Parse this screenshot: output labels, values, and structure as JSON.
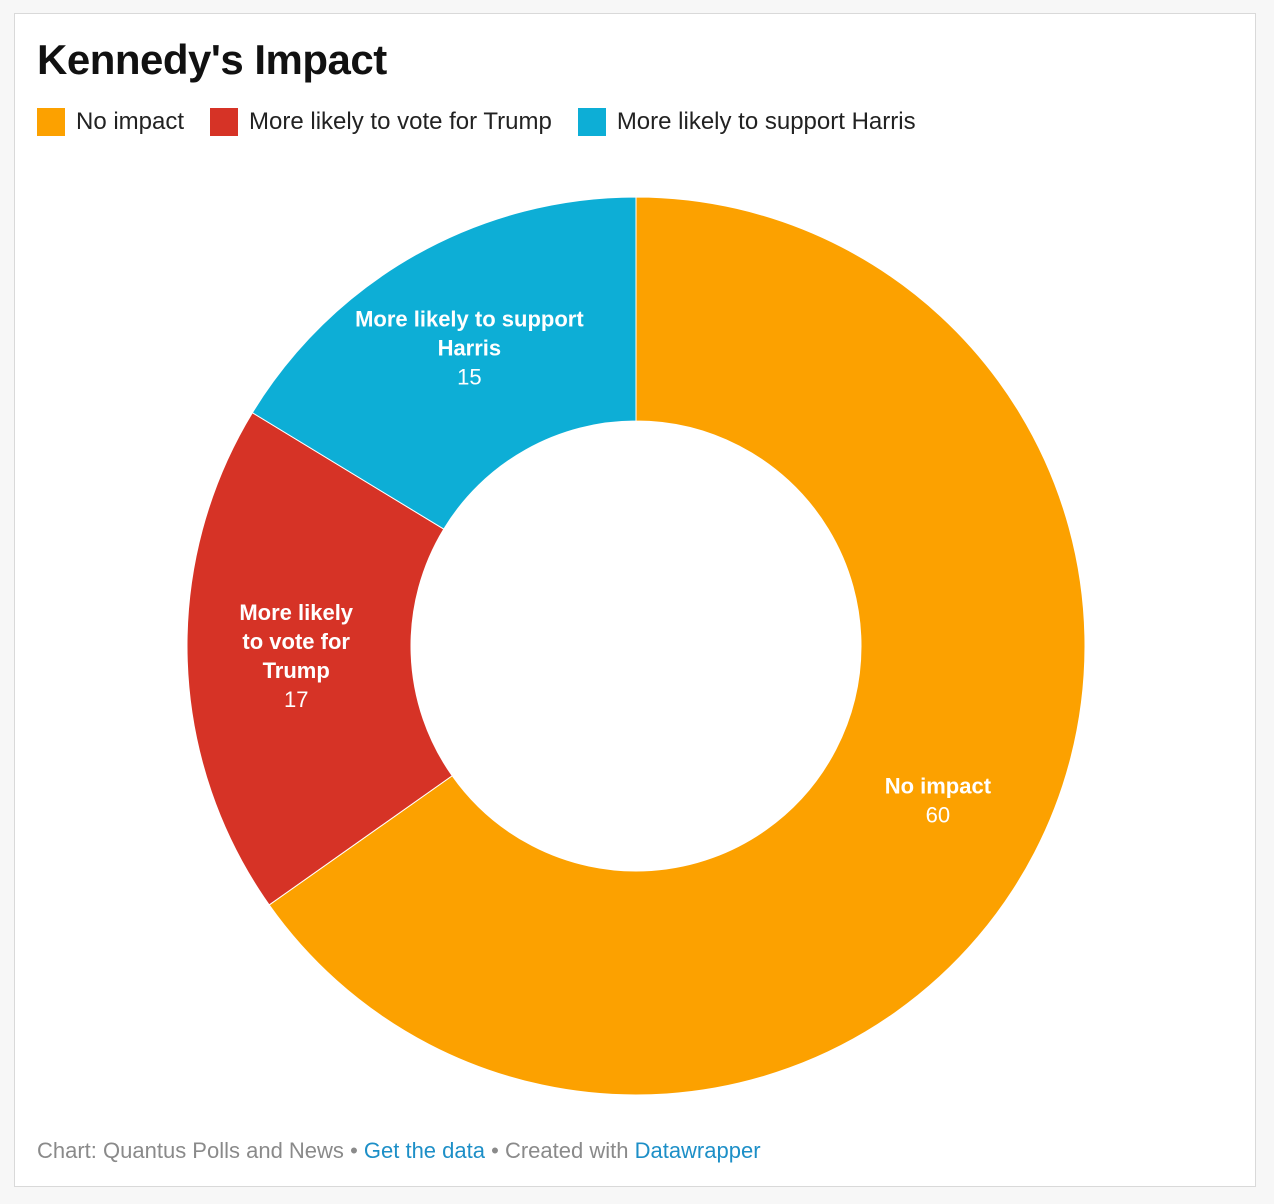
{
  "title": "Kennedy's Impact",
  "legend": [
    {
      "label": "No impact",
      "color": "#fca100"
    },
    {
      "label": "More likely to vote for Trump",
      "color": "#d63326"
    },
    {
      "label": "More likely to support Harris",
      "color": "#0daed6"
    }
  ],
  "chart_data": {
    "type": "pie",
    "variant": "donut",
    "title": "Kennedy's Impact",
    "categories": [
      "No impact",
      "More likely to vote for Trump",
      "More likely to support Harris"
    ],
    "values": [
      60,
      17,
      15
    ],
    "colors": [
      "#fca100",
      "#d63326",
      "#0daed6"
    ],
    "slice_labels": [
      {
        "lines": [
          "No impact"
        ],
        "value": "60"
      },
      {
        "lines": [
          "More likely",
          "to vote for",
          "Trump"
        ],
        "value": "17"
      },
      {
        "lines": [
          "More likely to support",
          "Harris"
        ],
        "value": "15"
      }
    ],
    "legend_position": "top-left"
  },
  "footer": {
    "source": "Chart: Quantus Polls and News",
    "get_data": "Get the data",
    "created_with": "Created with",
    "tool": "Datawrapper",
    "bullet": "•"
  }
}
